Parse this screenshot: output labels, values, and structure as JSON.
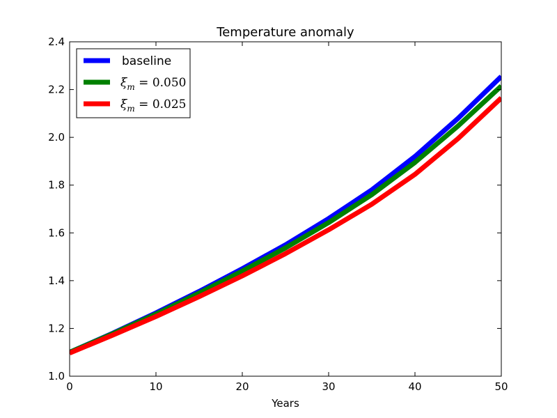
{
  "chart_data": {
    "type": "line",
    "title": "Temperature anomaly",
    "xlabel": "Years",
    "ylabel": "",
    "xlim": [
      0,
      50
    ],
    "ylim": [
      1.0,
      2.4
    ],
    "xticks": [
      0,
      10,
      20,
      30,
      40,
      50
    ],
    "xtick_labels": [
      "0",
      "10",
      "20",
      "30",
      "40",
      "50"
    ],
    "yticks": [
      1.0,
      1.2,
      1.4,
      1.6,
      1.8,
      2.0,
      2.2,
      2.4
    ],
    "ytick_labels": [
      "1.0",
      "1.2",
      "1.4",
      "1.6",
      "1.8",
      "2.0",
      "2.2",
      "2.4"
    ],
    "grid": false,
    "legend_position": "top-left",
    "x": [
      0,
      5,
      10,
      15,
      20,
      25,
      30,
      35,
      40,
      45,
      50
    ],
    "series": [
      {
        "name": "baseline",
        "name_parts": {
          "sym": "",
          "sub": "",
          "rest": ""
        },
        "color": "#0000ff",
        "values": [
          1.1,
          1.18,
          1.265,
          1.355,
          1.45,
          1.55,
          1.66,
          1.78,
          1.92,
          2.08,
          2.255
        ]
      },
      {
        "name": "ξm = 0.050",
        "name_parts": {
          "sym": "ξ",
          "sub": "m",
          "rest": " = 0.050"
        },
        "color": "#008000",
        "values": [
          1.1,
          1.178,
          1.26,
          1.348,
          1.44,
          1.537,
          1.643,
          1.76,
          1.895,
          2.048,
          2.215
        ]
      },
      {
        "name": "ξm = 0.025",
        "name_parts": {
          "sym": "ξ",
          "sub": "m",
          "rest": " = 0.025"
        },
        "color": "#ff0000",
        "values": [
          1.097,
          1.172,
          1.25,
          1.333,
          1.42,
          1.513,
          1.613,
          1.72,
          1.845,
          1.995,
          2.165
        ]
      }
    ]
  }
}
